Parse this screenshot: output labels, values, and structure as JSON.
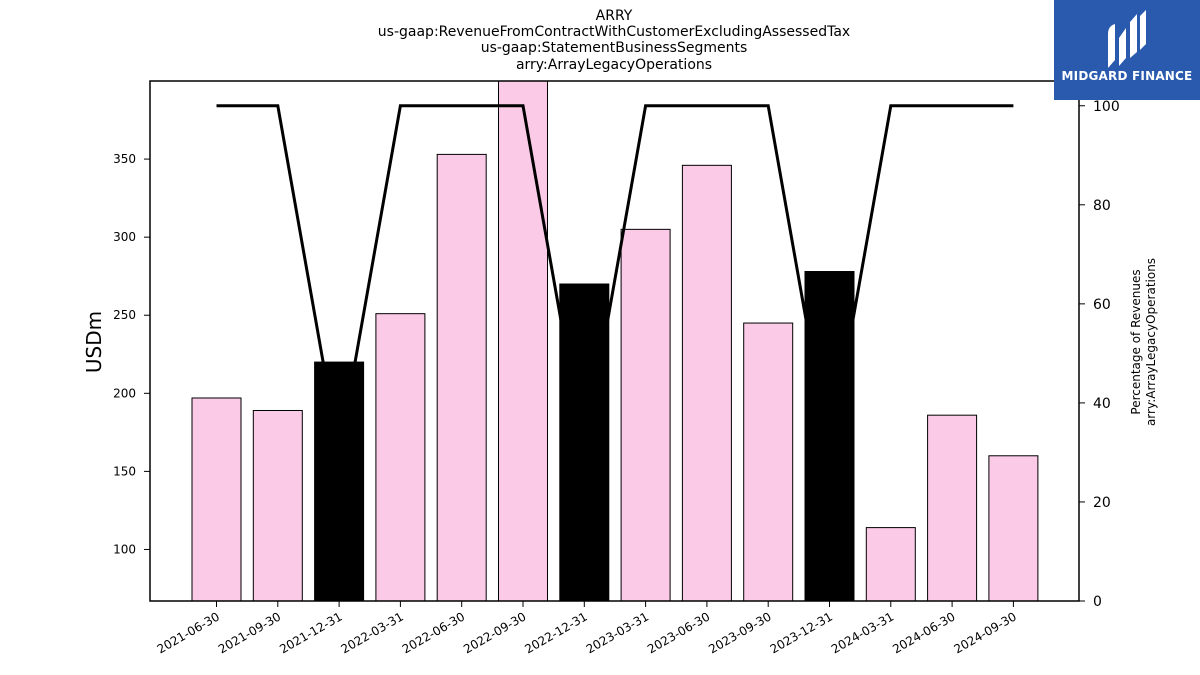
{
  "chart_data": {
    "type": "bar",
    "title_lines": [
      "ARRY",
      "us-gaap:RevenueFromContractWithCustomerExcludingAssessedTax",
      "us-gaap:StatementBusinessSegments",
      "arry:ArrayLegacyOperations"
    ],
    "categories": [
      "2021-06-30",
      "2021-09-30",
      "2021-12-31",
      "2022-03-31",
      "2022-06-30",
      "2022-09-30",
      "2022-12-31",
      "2023-03-31",
      "2023-06-30",
      "2023-09-30",
      "2023-12-31",
      "2024-03-31",
      "2024-06-30",
      "2024-09-30"
    ],
    "series": [
      {
        "axis": "left",
        "kind": "bar",
        "values": [
          197,
          189,
          220,
          251,
          353,
          400,
          270,
          305,
          346,
          245,
          278,
          114,
          186,
          160
        ],
        "colors": [
          "#fbcae6",
          "#fbcae6",
          "#000000",
          "#fbcae6",
          "#fbcae6",
          "#fbcae6",
          "#000000",
          "#fbcae6",
          "#fbcae6",
          "#fbcae6",
          "#000000",
          "#fbcae6",
          "#fbcae6",
          "#fbcae6"
        ]
      },
      {
        "axis": "right",
        "kind": "line",
        "color": "#000000",
        "values": [
          100,
          100,
          30,
          100,
          100,
          100,
          30,
          100,
          100,
          100,
          30,
          100,
          100,
          100
        ]
      }
    ],
    "ylabel": "USDm",
    "y2label_lines": [
      "Percentage of Revenues",
      "arry:ArrayLegacyOperations"
    ],
    "ylim": [
      67,
      400
    ],
    "yticks": [
      100,
      150,
      200,
      250,
      300,
      350
    ],
    "y2lim": [
      0,
      105
    ],
    "y2ticks": [
      0,
      20,
      40,
      60,
      80,
      100
    ],
    "grid": false
  },
  "logo": {
    "text": "MIDGARD FINANCE"
  }
}
